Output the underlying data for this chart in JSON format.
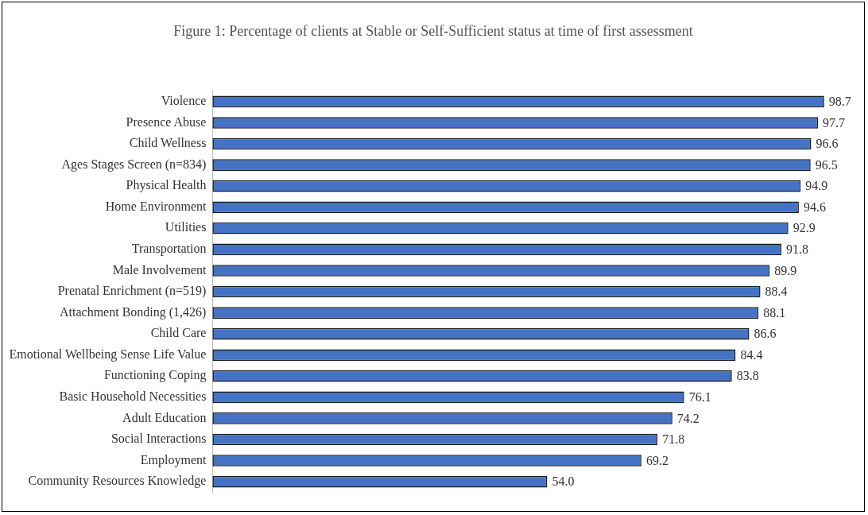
{
  "chart_data": {
    "type": "bar",
    "orientation": "horizontal",
    "title": "Figure 1: Percentage of clients at Stable or Self-Sufficient status at time of first assessment",
    "categories": [
      "Violence",
      "Presence Abuse",
      "Child Wellness",
      "Ages Stages Screen (n=834)",
      "Physical Health",
      "Home Environment",
      "Utilities",
      "Transportation",
      "Male Involvement",
      "Prenatal Enrichment (n=519)",
      "Attachment Bonding (1,426)",
      "Child Care",
      "Emotional Wellbeing Sense Life Value",
      "Functioning Coping",
      "Basic Household Necessities",
      "Adult Education",
      "Social Interactions",
      "Employment",
      "Community Resources Knowledge"
    ],
    "values": [
      98.7,
      97.7,
      96.6,
      96.5,
      94.9,
      94.6,
      92.9,
      91.8,
      89.9,
      88.4,
      88.1,
      86.6,
      84.4,
      83.8,
      76.1,
      74.2,
      71.8,
      69.2,
      54.0
    ],
    "value_labels": [
      "98.7",
      "97.7",
      "96.6",
      "96.5",
      "94.9",
      "94.6",
      "92.9",
      "91.8",
      "89.9",
      "88.4",
      "88.1",
      "86.6",
      "84.4",
      "83.8",
      "76.1",
      "74.2",
      "71.8",
      "69.2",
      "54.0"
    ],
    "color": "#4472c4",
    "tick_labels": "y",
    "legend": false
  }
}
